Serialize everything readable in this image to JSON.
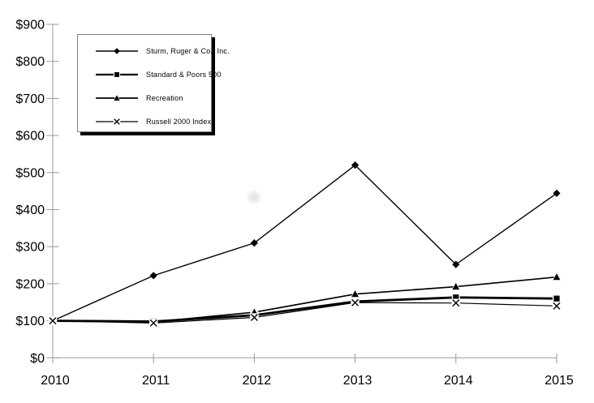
{
  "chart_data": {
    "type": "line",
    "title": "",
    "xlabel": "",
    "ylabel": "",
    "x_labels": [
      "2010",
      "2011",
      "2012",
      "2013",
      "2014",
      "2015"
    ],
    "y_tick_labels": [
      "$0",
      "$100",
      "$200",
      "$300",
      "$400",
      "$500",
      "$600",
      "$700",
      "$800",
      "$900"
    ],
    "ylim": [
      0,
      900
    ],
    "y_tick_step": 100,
    "grid": false,
    "legend_position": "top-left",
    "background_color": "#ffffff",
    "axis_color": "#9a9a9a",
    "line_color": "#000000",
    "label_color": "#000000",
    "series": [
      {
        "name": "Sturm, Ruger & Co., Inc.",
        "marker": "diamond",
        "line_width": 1.4,
        "values": [
          100,
          222,
          310,
          520,
          252,
          444
        ]
      },
      {
        "name": "Standard & Poors 500",
        "marker": "square",
        "line_width": 2.8,
        "values": [
          100,
          98,
          115,
          152,
          163,
          160
        ]
      },
      {
        "name": "Recreation",
        "marker": "triangle",
        "line_width": 1.7,
        "values": [
          100,
          97,
          123,
          172,
          192,
          218
        ]
      },
      {
        "name": "Russell 2000 Index",
        "marker": "x",
        "line_width": 1.2,
        "values": [
          100,
          94,
          109,
          149,
          148,
          140
        ]
      }
    ]
  }
}
